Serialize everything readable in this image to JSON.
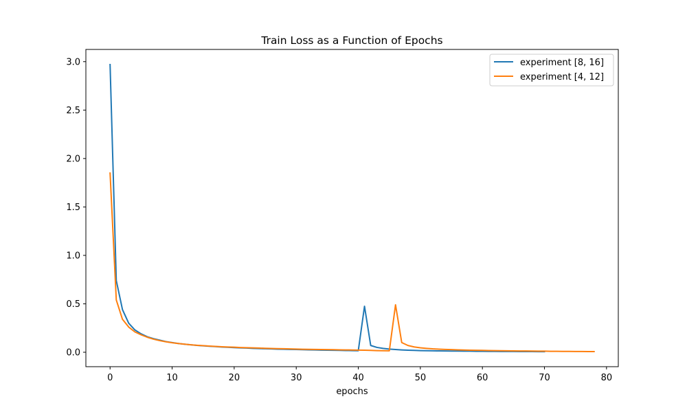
{
  "chart_data": {
    "type": "line",
    "title": "Train Loss as a Function of Epochs",
    "xlabel": "epochs",
    "ylabel": "",
    "xlim": [
      -3.9,
      81.9
    ],
    "ylim": [
      -0.149,
      3.126
    ],
    "xticks": [
      0,
      10,
      20,
      30,
      40,
      50,
      60,
      70,
      80
    ],
    "yticks": [
      0.0,
      0.5,
      1.0,
      1.5,
      2.0,
      2.5,
      3.0
    ],
    "xtick_labels": [
      "0",
      "10",
      "20",
      "30",
      "40",
      "50",
      "60",
      "70",
      "80"
    ],
    "ytick_labels": [
      "0.0",
      "0.5",
      "1.0",
      "1.5",
      "2.0",
      "2.5",
      "3.0"
    ],
    "grid": false,
    "legend_position": "top-right",
    "series": [
      {
        "name": "experiment [8, 16]",
        "color": "#1f77b4",
        "x": [
          0,
          1,
          2,
          3,
          4,
          5,
          6,
          7,
          8,
          9,
          10,
          11,
          12,
          13,
          14,
          15,
          16,
          17,
          18,
          19,
          20,
          21,
          22,
          23,
          24,
          25,
          26,
          27,
          28,
          29,
          30,
          31,
          32,
          33,
          34,
          35,
          36,
          37,
          38,
          39,
          40,
          41,
          42,
          43,
          44,
          45,
          46,
          47,
          48,
          49,
          50,
          51,
          52,
          53,
          54,
          55,
          56,
          57,
          58,
          59,
          60,
          61,
          62,
          63,
          64,
          65,
          66,
          67,
          68,
          69,
          70
        ],
        "y": [
          2.97,
          0.74,
          0.44,
          0.3,
          0.23,
          0.19,
          0.16,
          0.14,
          0.125,
          0.11,
          0.1,
          0.09,
          0.083,
          0.077,
          0.071,
          0.066,
          0.062,
          0.058,
          0.054,
          0.051,
          0.048,
          0.045,
          0.043,
          0.04,
          0.038,
          0.036,
          0.034,
          0.032,
          0.031,
          0.029,
          0.028,
          0.026,
          0.025,
          0.024,
          0.022,
          0.021,
          0.02,
          0.019,
          0.018,
          0.017,
          0.016,
          0.475,
          0.07,
          0.05,
          0.04,
          0.033,
          0.028,
          0.024,
          0.021,
          0.019,
          0.017,
          0.016,
          0.015,
          0.014,
          0.013,
          0.012,
          0.012,
          0.011,
          0.011,
          0.01,
          0.01,
          0.009,
          0.009,
          0.008,
          0.008,
          0.008,
          0.007,
          0.007,
          0.007,
          0.006,
          0.006
        ]
      },
      {
        "name": "experiment [4, 12]",
        "color": "#ff7f0e",
        "x": [
          0,
          1,
          2,
          3,
          4,
          5,
          6,
          7,
          8,
          9,
          10,
          11,
          12,
          13,
          14,
          15,
          16,
          17,
          18,
          19,
          20,
          21,
          22,
          23,
          24,
          25,
          26,
          27,
          28,
          29,
          30,
          31,
          32,
          33,
          34,
          35,
          36,
          37,
          38,
          39,
          40,
          41,
          42,
          43,
          44,
          45,
          46,
          47,
          48,
          49,
          50,
          51,
          52,
          53,
          54,
          55,
          56,
          57,
          58,
          59,
          60,
          61,
          62,
          63,
          64,
          65,
          66,
          67,
          68,
          69,
          70,
          71,
          72,
          73,
          74,
          75,
          76,
          77,
          78
        ],
        "y": [
          1.85,
          0.54,
          0.34,
          0.26,
          0.21,
          0.18,
          0.155,
          0.135,
          0.12,
          0.108,
          0.098,
          0.09,
          0.083,
          0.077,
          0.072,
          0.068,
          0.064,
          0.06,
          0.057,
          0.054,
          0.052,
          0.049,
          0.047,
          0.045,
          0.043,
          0.041,
          0.039,
          0.037,
          0.036,
          0.034,
          0.033,
          0.031,
          0.03,
          0.029,
          0.028,
          0.027,
          0.026,
          0.025,
          0.024,
          0.023,
          0.022,
          0.021,
          0.019,
          0.017,
          0.016,
          0.015,
          0.49,
          0.1,
          0.07,
          0.055,
          0.046,
          0.04,
          0.035,
          0.032,
          0.029,
          0.027,
          0.025,
          0.023,
          0.021,
          0.02,
          0.019,
          0.018,
          0.017,
          0.016,
          0.015,
          0.014,
          0.013,
          0.013,
          0.012,
          0.011,
          0.011,
          0.01,
          0.01,
          0.009,
          0.009,
          0.008,
          0.008,
          0.007,
          0.007
        ]
      }
    ]
  }
}
